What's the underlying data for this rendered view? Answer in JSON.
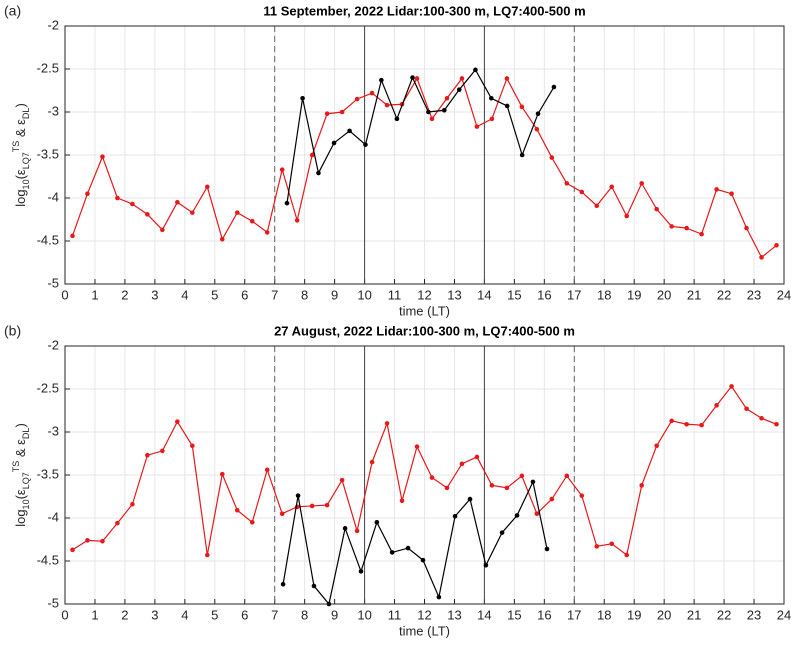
{
  "chart_data": [
    {
      "type": "line",
      "panel_label": "(a)",
      "title": "11 September, 2022  Lidar:100-300 m, LQ7:400-500 m",
      "xlabel": "time (LT)",
      "ylabel": [
        {
          "text": "log",
          "shift": "none"
        },
        {
          "text": "10",
          "shift": "sub"
        },
        {
          "text": "(ε",
          "shift": "none"
        },
        {
          "text": "LQ7",
          "shift": "sub"
        },
        {
          "text": "TS",
          "shift": "sup"
        },
        {
          "text": " & ε",
          "shift": "none"
        },
        {
          "text": "DL",
          "shift": "sub"
        },
        {
          "text": ")",
          "shift": "none"
        }
      ],
      "xlim": [
        0,
        24
      ],
      "xticks": [
        0,
        1,
        2,
        3,
        4,
        5,
        6,
        7,
        8,
        9,
        10,
        11,
        12,
        13,
        14,
        15,
        16,
        17,
        18,
        19,
        20,
        21,
        22,
        23,
        24
      ],
      "ylim": [
        -5,
        -2
      ],
      "yticks": [
        -5,
        -4.5,
        -4,
        -3.5,
        -3,
        -2.5,
        -2
      ],
      "grid": true,
      "vlines": [
        {
          "x": 7,
          "style": "dashed"
        },
        {
          "x": 10,
          "style": "solid"
        },
        {
          "x": 14,
          "style": "solid"
        },
        {
          "x": 17,
          "style": "dashed"
        }
      ],
      "series": [
        {
          "color": "#e8191b",
          "x": [
            0.25,
            0.75,
            1.25,
            1.75,
            2.25,
            2.75,
            3.25,
            3.75,
            4.25,
            4.75,
            5.25,
            5.75,
            6.25,
            6.75,
            7.25,
            7.75,
            8.25,
            8.75,
            9.25,
            9.75,
            10.25,
            10.75,
            11.25,
            11.75,
            12.25,
            12.75,
            13.25,
            13.75,
            14.25,
            14.75,
            15.25,
            15.75,
            16.25,
            16.75,
            17.25,
            17.75,
            18.25,
            18.75,
            19.25,
            19.75,
            20.25,
            20.75,
            21.25,
            21.75,
            22.25,
            22.75,
            23.25,
            23.75
          ],
          "values": [
            -4.44,
            -3.95,
            -3.52,
            -4.0,
            -4.07,
            -4.19,
            -4.37,
            -4.05,
            -4.17,
            -3.87,
            -4.48,
            -4.17,
            -4.27,
            -4.4,
            -3.67,
            -4.26,
            -3.5,
            -3.02,
            -3.0,
            -2.85,
            -2.78,
            -2.92,
            -2.91,
            -2.61,
            -3.08,
            -2.84,
            -2.61,
            -3.17,
            -3.08,
            -2.61,
            -2.94,
            -3.2,
            -3.53,
            -3.83,
            -3.93,
            -4.09,
            -3.87,
            -4.21,
            -3.83,
            -4.13,
            -4.33,
            -4.35,
            -4.42,
            -3.9,
            -3.95,
            -4.35,
            -4.69,
            -4.55
          ]
        },
        {
          "color": "#000000",
          "x": [
            7.41,
            7.93,
            8.46,
            8.98,
            9.5,
            10.03,
            10.56,
            11.08,
            11.6,
            12.13,
            12.66,
            13.16,
            13.7,
            14.23,
            14.76,
            15.26,
            15.79,
            16.32
          ],
          "values": [
            -4.06,
            -2.84,
            -3.71,
            -3.36,
            -3.22,
            -3.38,
            -2.63,
            -3.08,
            -2.6,
            -3.0,
            -2.98,
            -2.74,
            -2.51,
            -2.84,
            -2.93,
            -3.5,
            -3.02,
            -2.71
          ]
        }
      ]
    },
    {
      "type": "line",
      "panel_label": "(b)",
      "title": "27 August, 2022  Lidar:100-300 m, LQ7:400-500 m",
      "xlabel": "time (LT)",
      "ylabel": [
        {
          "text": "log",
          "shift": "none"
        },
        {
          "text": "10",
          "shift": "sub"
        },
        {
          "text": "(ε",
          "shift": "none"
        },
        {
          "text": "LQ7",
          "shift": "sub"
        },
        {
          "text": "TS",
          "shift": "sup"
        },
        {
          "text": " & ε",
          "shift": "none"
        },
        {
          "text": "DL",
          "shift": "sub"
        },
        {
          "text": ")",
          "shift": "none"
        }
      ],
      "xlim": [
        0,
        24
      ],
      "xticks": [
        0,
        1,
        2,
        3,
        4,
        5,
        6,
        7,
        8,
        9,
        10,
        11,
        12,
        13,
        14,
        15,
        16,
        17,
        18,
        19,
        20,
        21,
        22,
        23,
        24
      ],
      "ylim": [
        -5,
        -2
      ],
      "yticks": [
        -5,
        -4.5,
        -4,
        -3.5,
        -3,
        -2.5,
        -2
      ],
      "grid": true,
      "vlines": [
        {
          "x": 7,
          "style": "dashed"
        },
        {
          "x": 10,
          "style": "solid"
        },
        {
          "x": 14,
          "style": "solid"
        },
        {
          "x": 17,
          "style": "dashed"
        }
      ],
      "series": [
        {
          "color": "#e8191b",
          "x": [
            0.25,
            0.75,
            1.25,
            1.75,
            2.25,
            2.75,
            3.25,
            3.75,
            4.25,
            4.75,
            5.25,
            5.75,
            6.25,
            6.75,
            7.25,
            7.75,
            8.25,
            8.75,
            9.25,
            9.75,
            10.25,
            10.75,
            11.25,
            11.75,
            12.25,
            12.75,
            13.25,
            13.75,
            14.25,
            14.75,
            15.25,
            15.75,
            16.25,
            16.75,
            17.25,
            17.75,
            18.25,
            18.75,
            19.25,
            19.75,
            20.25,
            20.75,
            21.25,
            21.75,
            22.25,
            22.75,
            23.25,
            23.75
          ],
          "values": [
            -4.37,
            -4.26,
            -4.27,
            -4.06,
            -3.84,
            -3.27,
            -3.22,
            -2.88,
            -3.16,
            -4.43,
            -3.49,
            -3.91,
            -4.05,
            -3.44,
            -3.95,
            -3.87,
            -3.86,
            -3.85,
            -3.56,
            -4.15,
            -3.35,
            -2.9,
            -3.8,
            -3.17,
            -3.53,
            -3.65,
            -3.37,
            -3.29,
            -3.62,
            -3.65,
            -3.51,
            -3.95,
            -3.78,
            -3.51,
            -3.74,
            -4.33,
            -4.3,
            -4.43,
            -3.62,
            -3.16,
            -2.87,
            -2.91,
            -2.92,
            -2.69,
            -2.47,
            -2.73,
            -2.84,
            -2.91
          ]
        },
        {
          "color": "#000000",
          "x": [
            7.28,
            7.78,
            8.31,
            8.81,
            9.35,
            9.88,
            10.41,
            10.92,
            11.45,
            11.95,
            12.48,
            13.02,
            13.52,
            14.05,
            14.59,
            15.09,
            15.62,
            16.09
          ],
          "values": [
            -4.77,
            -3.74,
            -4.79,
            -5.0,
            -4.12,
            -4.62,
            -4.05,
            -4.4,
            -4.35,
            -4.49,
            -4.92,
            -3.98,
            -3.78,
            -4.55,
            -4.17,
            -3.97,
            -3.58,
            -4.36
          ]
        }
      ]
    }
  ]
}
